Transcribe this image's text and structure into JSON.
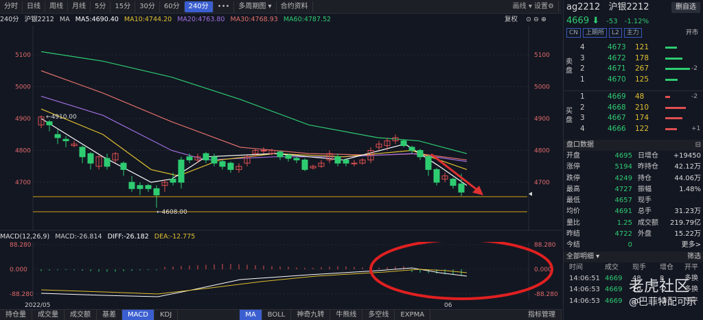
{
  "toolbar": {
    "items": [
      "分时",
      "日线",
      "周线",
      "月线",
      "5分",
      "15分",
      "30分",
      "60分",
      "240分",
      "•••",
      "多周期图 ▾",
      "合约资料"
    ],
    "active_index": 8,
    "right": "画线 ▾ 设置⚙"
  },
  "ma_bar": {
    "period": "240分",
    "name": "沪银2212",
    "ma": "MA",
    "ma5": "MA5:4690.40",
    "ma10": "MA10:4744.20",
    "ma20": "MA20:4763.80",
    "ma30": "MA30:4768.93",
    "ma60": "MA60:4787.52",
    "restore": "复权"
  },
  "main_chart": {
    "y_ticks": [
      "5100",
      "5000",
      "4900",
      "4800",
      "4700"
    ],
    "high_label": "←4910.00",
    "low_label": "←4608.00"
  },
  "macd_bar": {
    "title": "MACD(12,26,9)",
    "macd": "MACD:-26.814",
    "diff": "DIFF:-26.182",
    "dea": "DEA:-12.775"
  },
  "macd_chart": {
    "y_ticks": [
      "88.280",
      "0.000",
      "-88.280"
    ],
    "x_labels": [
      "2022/05",
      "06"
    ]
  },
  "bottom_tabs": {
    "left": [
      "持仓量",
      "成交量",
      "成交额",
      "基差",
      "MACD",
      "KDJ"
    ],
    "left_active": 4,
    "right": [
      "MA",
      "BOLL",
      "神奇九转",
      "牛熊线",
      "多空线",
      "EXPMA"
    ],
    "right_active": 0,
    "manage": "指标管理"
  },
  "panel": {
    "code": "ag2212",
    "name": "沪银2212",
    "button": "删自选",
    "price": "4669",
    "arrow": "⬇",
    "change": "-53",
    "pct": "-1.12%",
    "tags": [
      "CN",
      "上期所",
      "L2",
      "主力"
    ],
    "status": "开市",
    "sell_label": "卖盘",
    "buy_label": "买盘",
    "sells": [
      {
        "lvl": "4",
        "price": "4673",
        "vol": "121",
        "delta": ""
      },
      {
        "lvl": "3",
        "price": "4672",
        "vol": "178",
        "delta": ""
      },
      {
        "lvl": "2",
        "price": "4671",
        "vol": "267",
        "delta": "-2"
      },
      {
        "lvl": "1",
        "price": "4670",
        "vol": "125",
        "delta": ""
      }
    ],
    "buys": [
      {
        "lvl": "1",
        "price": "4669",
        "vol": "48",
        "delta": "-2"
      },
      {
        "lvl": "2",
        "price": "4668",
        "vol": "210",
        "delta": ""
      },
      {
        "lvl": "3",
        "price": "4667",
        "vol": "174",
        "delta": ""
      },
      {
        "lvl": "4",
        "price": "4666",
        "vol": "122",
        "delta": "+1"
      }
    ],
    "quote_title": "盘口数据",
    "quotes": [
      {
        "k1": "开盘",
        "v1": "4695",
        "k2": "日增仓",
        "v2": "+19450"
      },
      {
        "k1": "涨停",
        "v1": "5194",
        "k2": "昨持仓",
        "v2": "42.12万"
      },
      {
        "k1": "跌停",
        "v1": "4249",
        "k2": "持仓",
        "v2": "44.06万"
      },
      {
        "k1": "最高",
        "v1": "4727",
        "k2": "振幅",
        "v2": "1.48%"
      },
      {
        "k1": "最低",
        "v1": "4657",
        "k2": "现手",
        "v2": ""
      },
      {
        "k1": "均价",
        "v1": "4691",
        "k2": "总手",
        "v2": "31.23万"
      },
      {
        "k1": "量比",
        "v1": "1.25",
        "k2": "成交额",
        "v2": "219.79亿"
      },
      {
        "k1": "昨结",
        "v1": "4722",
        "k2": "外盘",
        "v2": "15.22万"
      },
      {
        "k1": "今结",
        "v1": "0",
        "k2": "",
        "v2": "更多>"
      }
    ],
    "trades_title": "全部明细 ▾",
    "filter": "筛选",
    "trade_cols": [
      "时间",
      "成交",
      "现手",
      "增仓",
      "开平"
    ],
    "trades": [
      {
        "t": "14:06:51",
        "p": "4669",
        "v": "48",
        "d": "8",
        "o": "多换"
      },
      {
        "t": "14:06:53",
        "p": "4669",
        "v": "20",
        "d": "-2",
        "o": "多换"
      },
      {
        "t": "14:06:53",
        "p": "4669",
        "v": "20",
        "d": "-2",
        "o": "空平"
      }
    ],
    "watermark1": "老虎社区",
    "watermark2": "@巴菲特配可乐"
  }
}
